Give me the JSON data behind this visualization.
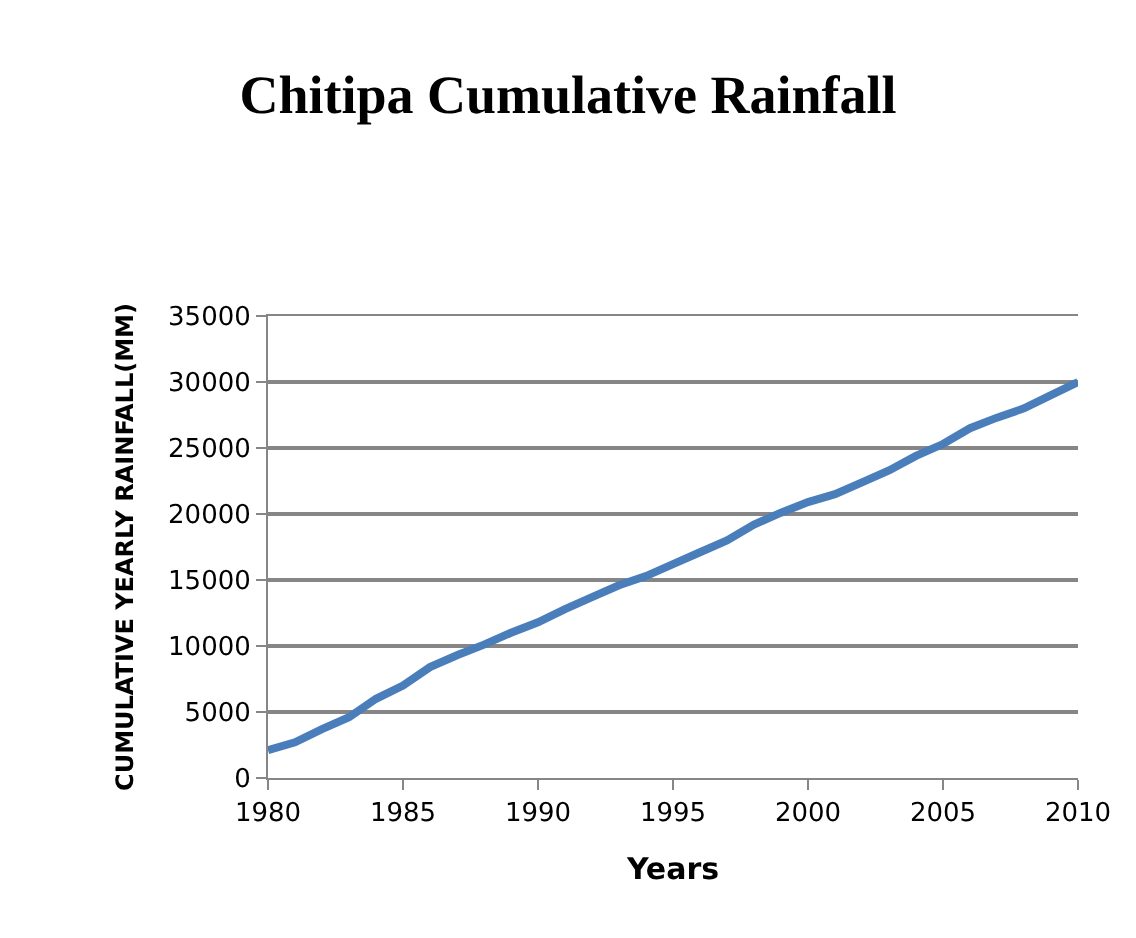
{
  "chart_data": {
    "type": "line",
    "title": "Chitipa Cumulative Rainfall",
    "xlabel": "Years",
    "ylabel": "CUMULATIVE YEARLY RAINFALL(MM)",
    "x": [
      1980,
      1981,
      1982,
      1983,
      1984,
      1985,
      1986,
      1987,
      1988,
      1989,
      1990,
      1991,
      1992,
      1993,
      1994,
      1995,
      1996,
      1997,
      1998,
      1999,
      2000,
      2001,
      2002,
      2003,
      2004,
      2005,
      2006,
      2007,
      2008,
      2009,
      2010
    ],
    "series": [
      {
        "color": "#4a7ebb",
        "values": [
          2100,
          2700,
          3700,
          4600,
          6000,
          7000,
          8400,
          9300,
          10100,
          11000,
          11800,
          12800,
          13700,
          14600,
          15300,
          16200,
          17100,
          18000,
          19200,
          20100,
          20900,
          21500,
          22400,
          23300,
          24400,
          25300,
          26500,
          27300,
          28000,
          29000,
          30000
        ]
      }
    ],
    "xlim": [
      1980,
      2010
    ],
    "xticks": [
      1980,
      1985,
      1990,
      1995,
      2000,
      2005,
      2010
    ],
    "ylim": [
      0,
      35000
    ],
    "yticks": [
      0,
      5000,
      10000,
      15000,
      20000,
      25000,
      30000,
      35000
    ],
    "grid": "y",
    "marker": "none",
    "line_style": "solid"
  }
}
